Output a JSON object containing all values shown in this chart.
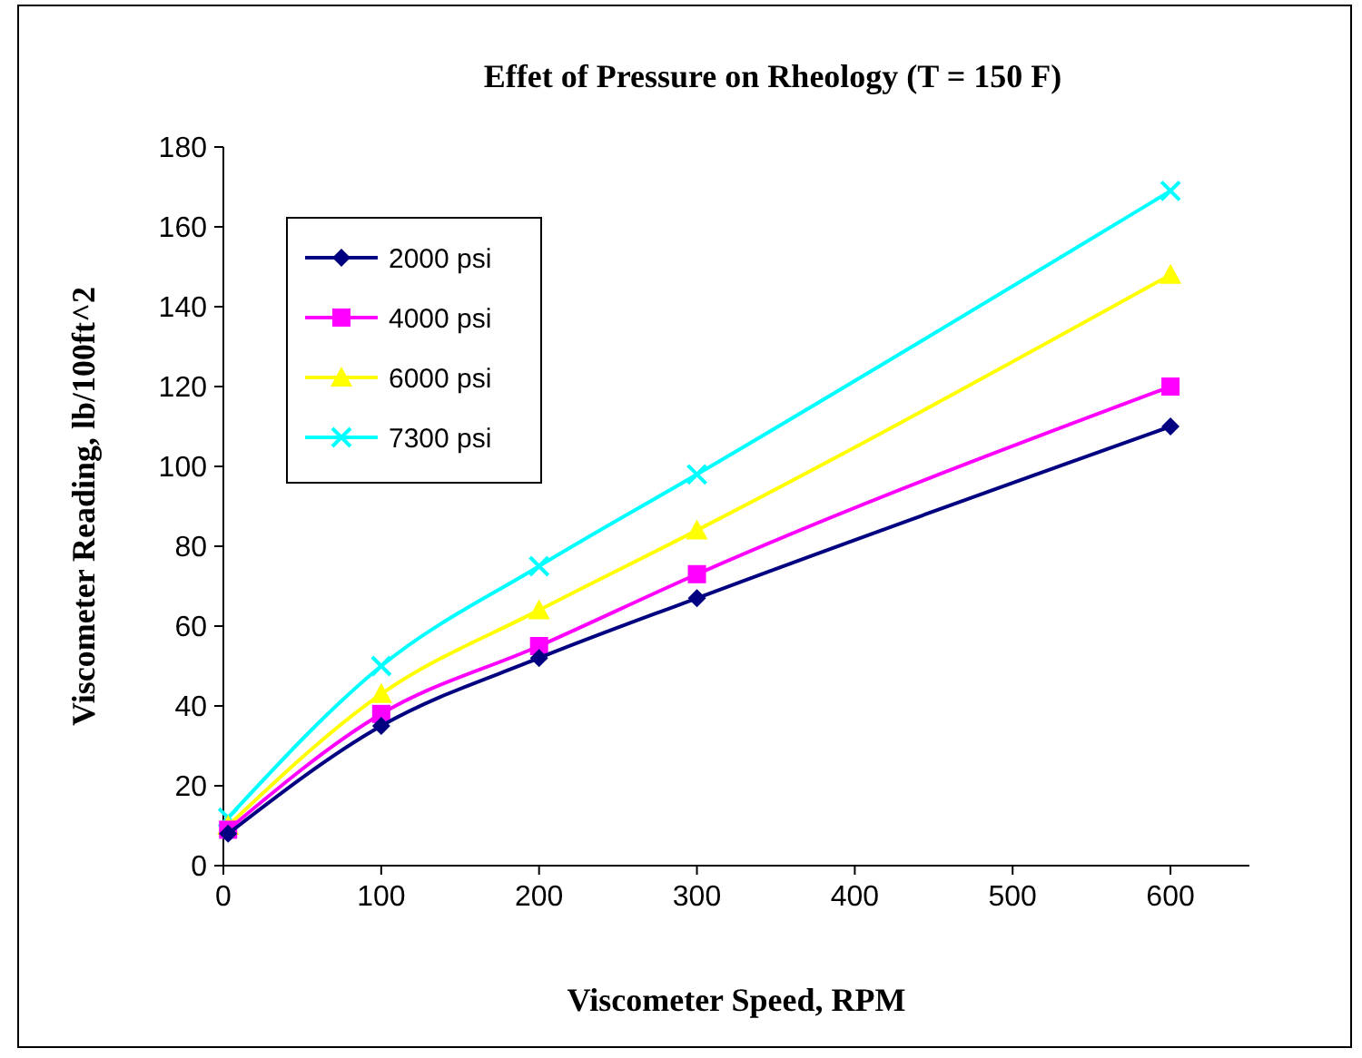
{
  "chart_data": {
    "type": "line",
    "title": "Effet of Pressure on Rheology (T = 150 F)",
    "xlabel": "Viscometer  Speed, RPM",
    "ylabel": "Viscometer  Reading,  lb/100ft^2",
    "x": [
      3,
      100,
      200,
      300,
      600
    ],
    "xlim": [
      0,
      650
    ],
    "xticks": [
      0,
      100,
      200,
      300,
      400,
      500,
      600
    ],
    "ylim": [
      0,
      180
    ],
    "yticks": [
      0,
      20,
      40,
      60,
      80,
      100,
      120,
      140,
      160,
      180
    ],
    "grid": false,
    "legend": "top left",
    "line_style": "solid",
    "series": [
      {
        "name": "2000 psi",
        "color": "#000080",
        "marker": "diamond",
        "values": [
          8,
          35,
          52,
          67,
          110
        ]
      },
      {
        "name": "4000 psi",
        "color": "#ff00ff",
        "marker": "square",
        "values": [
          9,
          38,
          55,
          73,
          120
        ]
      },
      {
        "name": "6000 psi",
        "color": "#ffff00",
        "marker": "triangle",
        "values": [
          10,
          43,
          64,
          84,
          148
        ]
      },
      {
        "name": "7300 psi",
        "color": "#00ffff",
        "marker": "cross",
        "values": [
          12,
          50,
          75,
          98,
          169
        ]
      }
    ]
  }
}
